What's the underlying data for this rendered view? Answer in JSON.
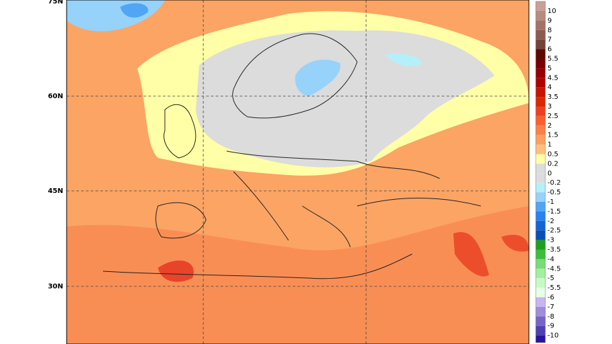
{
  "map": {
    "lat_labels": [
      "75N",
      "60N",
      "45N",
      "30N"
    ],
    "colorbar": {
      "labels": [
        "10",
        "9",
        "8",
        "7",
        "6",
        "5.5",
        "5",
        "4.5",
        "4",
        "3.5",
        "3",
        "2.5",
        "2",
        "1.5",
        "1",
        "0.5",
        "0.2",
        "0",
        "-0.2",
        "-0.5",
        "-1",
        "-1.5",
        "-2",
        "-2.5",
        "-3",
        "-3.5",
        "-4",
        "-4.5",
        "-5",
        "-5.5",
        "-6",
        "-7",
        "-8",
        "-9",
        "-10"
      ],
      "colors": [
        "#c9a098",
        "#b88a80",
        "#a57268",
        "#8e5a50",
        "#76423a",
        "#5c0a00",
        "#780000",
        "#960000",
        "#b00000",
        "#c81400",
        "#dc2800",
        "#ee4020",
        "#f86030",
        "#fa8048",
        "#fba060",
        "#fcc07c",
        "#ffffa8",
        "#dcdcdc",
        "#dcdcdc",
        "#b4f0fa",
        "#96d2fa",
        "#50a5f5",
        "#2882f0",
        "#1464d2",
        "#0a50b4",
        "#1ea01e",
        "#3cbe3c",
        "#78dc78",
        "#a0f0a0",
        "#c8fac8",
        "#e6ffe6",
        "#c8b4f0",
        "#a08cdc",
        "#7864c8",
        "#5040b4",
        "#2814a0",
        "#1a0a8c"
      ]
    }
  }
}
